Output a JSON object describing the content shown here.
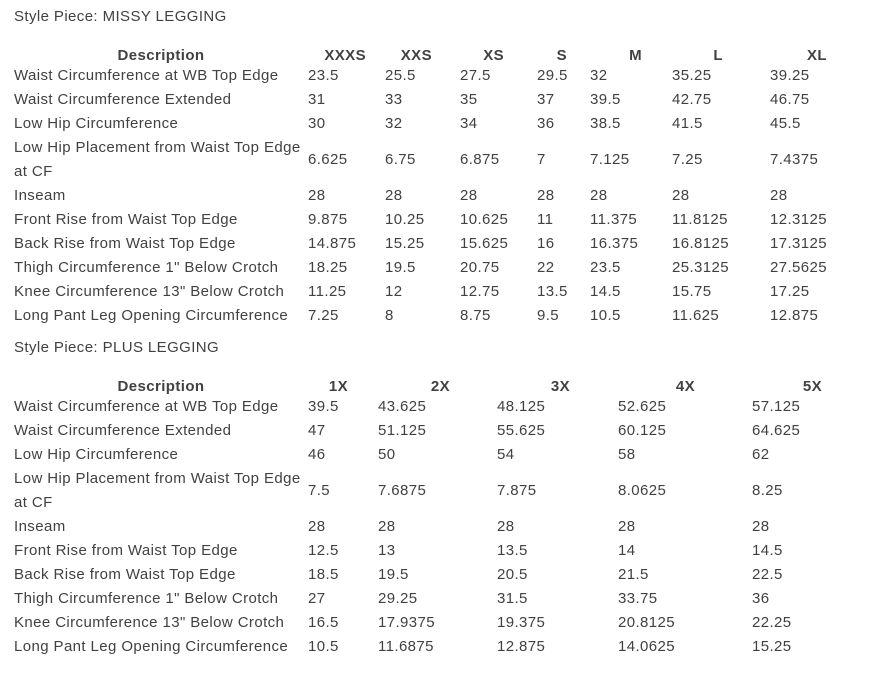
{
  "page": {
    "background": "#ffffff",
    "text_color": "#414141"
  },
  "tables": [
    {
      "id": "missy",
      "title": "Style Piece: MISSY LEGGING",
      "columns": {
        "description_label": "Description",
        "sizes": [
          "XXXS",
          "XXS",
          "XS",
          "S",
          "M",
          "L",
          "XL"
        ]
      },
      "rows": [
        {
          "label": "Waist Circumference at WB Top Edge",
          "values": [
            "23.5",
            "25.5",
            "27.5",
            "29.5",
            "32",
            "35.25",
            "39.25"
          ]
        },
        {
          "label": "Waist Circumference Extended",
          "values": [
            "31",
            "33",
            "35",
            "37",
            "39.5",
            "42.75",
            "46.75"
          ]
        },
        {
          "label": "Low Hip Circumference",
          "values": [
            "30",
            "32",
            "34",
            "36",
            "38.5",
            "41.5",
            "45.5"
          ]
        },
        {
          "label": "Low Hip Placement from Waist Top Edge at CF",
          "values": [
            "6.625",
            "6.75",
            "6.875",
            "7",
            "7.125",
            "7.25",
            "7.4375"
          ]
        },
        {
          "label": "Inseam",
          "values": [
            "28",
            "28",
            "28",
            "28",
            "28",
            "28",
            "28"
          ]
        },
        {
          "label": "Front Rise from Waist Top Edge",
          "values": [
            "9.875",
            "10.25",
            "10.625",
            "11",
            "11.375",
            "11.8125",
            "12.3125"
          ]
        },
        {
          "label": "Back Rise from Waist Top Edge",
          "values": [
            "14.875",
            "15.25",
            "15.625",
            "16",
            "16.375",
            "16.8125",
            "17.3125"
          ]
        },
        {
          "label": "Thigh Circumference 1\" Below Crotch",
          "values": [
            "18.25",
            "19.5",
            "20.75",
            "22",
            "23.5",
            "25.3125",
            "27.5625"
          ]
        },
        {
          "label": "Knee Circumference 13\" Below Crotch",
          "values": [
            "11.25",
            "12",
            "12.75",
            "13.5",
            "14.5",
            "15.75",
            "17.25"
          ]
        },
        {
          "label": "Long Pant Leg Opening Circumference",
          "values": [
            "7.25",
            "8",
            "8.75",
            "9.5",
            "10.5",
            "11.625",
            "12.875"
          ]
        }
      ]
    },
    {
      "id": "plus",
      "title": "Style Piece: PLUS LEGGING",
      "columns": {
        "description_label": "Description",
        "sizes": [
          "1X",
          "2X",
          "3X",
          "4X",
          "5X"
        ]
      },
      "rows": [
        {
          "label": "Waist Circumference at WB Top Edge",
          "values": [
            "39.5",
            "43.625",
            "48.125",
            "52.625",
            "57.125"
          ]
        },
        {
          "label": "Waist Circumference Extended",
          "values": [
            "47",
            "51.125",
            "55.625",
            "60.125",
            "64.625"
          ]
        },
        {
          "label": "Low Hip Circumference",
          "values": [
            "46",
            "50",
            "54",
            "58",
            "62"
          ]
        },
        {
          "label": "Low Hip Placement from Waist Top Edge at CF",
          "values": [
            "7.5",
            "7.6875",
            "7.875",
            "8.0625",
            "8.25"
          ]
        },
        {
          "label": "Inseam",
          "values": [
            "28",
            "28",
            "28",
            "28",
            "28"
          ]
        },
        {
          "label": "Front Rise from Waist Top Edge",
          "values": [
            "12.5",
            "13",
            "13.5",
            "14",
            "14.5"
          ]
        },
        {
          "label": "Back Rise from Waist Top Edge",
          "values": [
            "18.5",
            "19.5",
            "20.5",
            "21.5",
            "22.5"
          ]
        },
        {
          "label": "Thigh Circumference 1\" Below Crotch",
          "values": [
            "27",
            "29.25",
            "31.5",
            "33.75",
            "36"
          ]
        },
        {
          "label": "Knee Circumference 13\" Below Crotch",
          "values": [
            "16.5",
            "17.9375",
            "19.375",
            "20.8125",
            "22.25"
          ]
        },
        {
          "label": "Long Pant Leg Opening Circumference",
          "values": [
            "10.5",
            "11.6875",
            "12.875",
            "14.0625",
            "15.25"
          ]
        }
      ]
    }
  ]
}
